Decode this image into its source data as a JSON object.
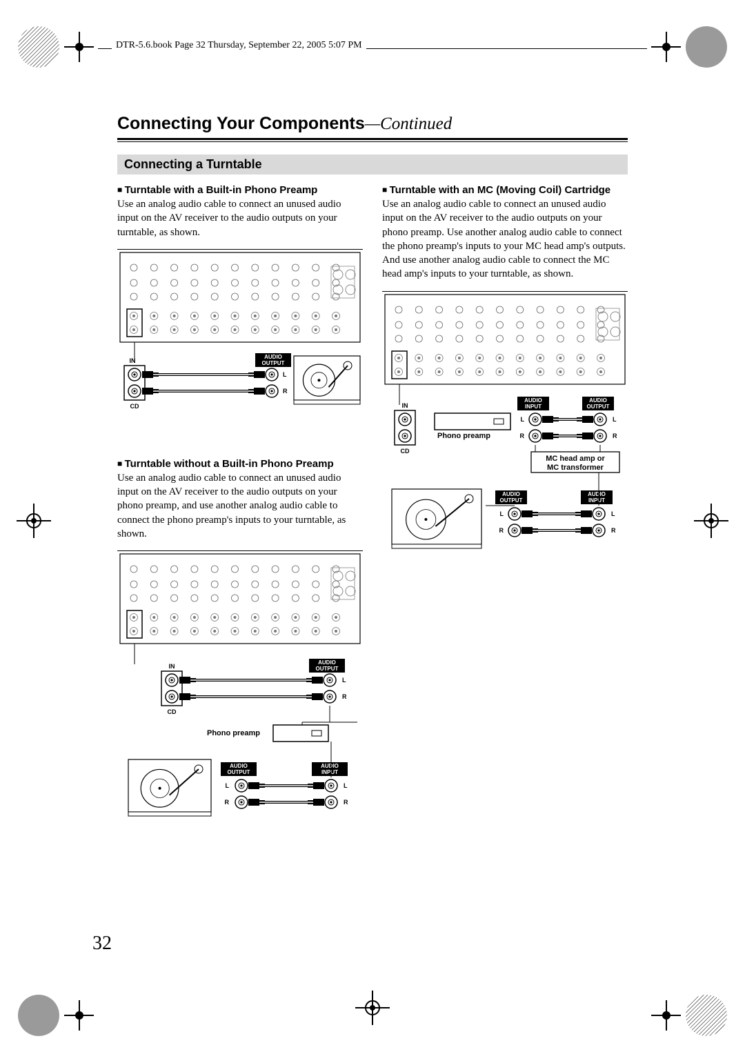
{
  "crop_header": "DTR-5.6.book  Page 32  Thursday, September 22, 2005  5:07 PM",
  "page_number": "32",
  "title_main": "Connecting Your Components",
  "title_cont": "—Continued",
  "section_bar": "Connecting a Turntable",
  "left": {
    "h1": "Turntable with a Built-in Phono Preamp",
    "p1": "Use an analog audio cable to connect an unused audio input on the AV receiver to the audio outputs on your turntable, as shown.",
    "h2": "Turntable without a Built-in Phono Preamp",
    "p2": "Use an analog audio cable to connect an unused audio input on the AV receiver to the audio outputs on your phono preamp, and use another analog audio cable to connect the phono preamp's inputs to your turntable, as shown."
  },
  "right": {
    "h1": "Turntable with an MC (Moving Coil) Cartridge",
    "p1": "Use an analog audio cable to connect an unused audio input on the AV receiver to the audio outputs on your phono preamp. Use another analog audio cable to connect the phono preamp's inputs to your MC head amp's outputs. And use another analog audio cable to connect the MC head amp's inputs to your turntable, as shown."
  },
  "labels": {
    "in": "IN",
    "cd": "CD",
    "l": "L",
    "r": "R",
    "audio_output": "AUDIO\nOUTPUT",
    "audio_input": "AUDIO\nINPUT",
    "phono_preamp": "Phono preamp",
    "mc_head": "MC head amp or\nMC transformer"
  },
  "colors": {
    "bg": "#ffffff",
    "text": "#000000",
    "section_bg": "#d9d9d9",
    "panel_fill": "#f2f2f2"
  }
}
